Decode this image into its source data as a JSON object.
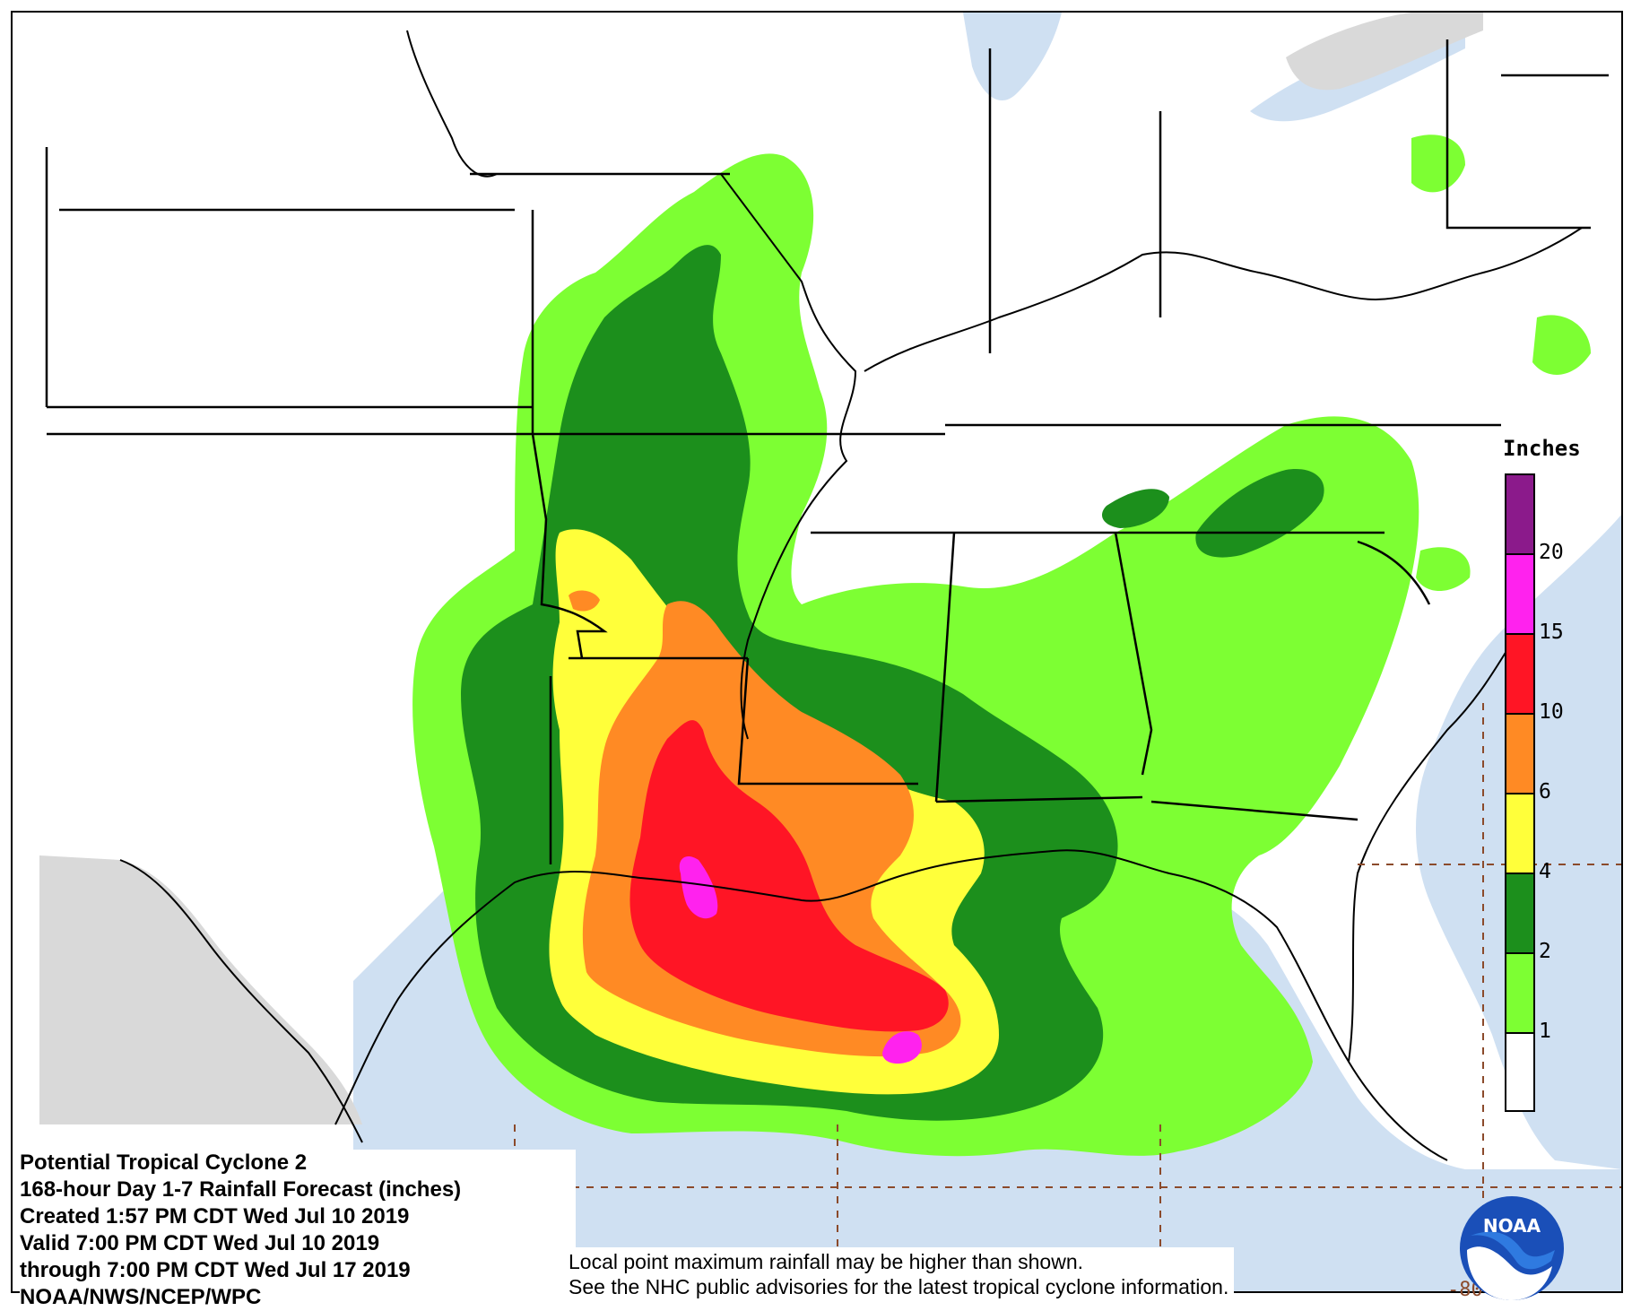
{
  "info_block": {
    "line1": "Potential Tropical Cyclone 2",
    "line2": "168-hour Day 1-7 Rainfall Forecast (inches)",
    "line3": "Created 1:57 PM CDT Wed Jul 10 2019",
    "line4": "Valid 7:00 PM CDT Wed Jul 10 2019",
    "line5": "through 7:00 PM CDT Wed Jul 17 2019",
    "line6": "NOAA/NWS/NCEP/WPC"
  },
  "disclaimer": {
    "line1": "Local point maximum rainfall may be higher than shown.",
    "line2": "See the NHC public advisories for the latest tropical cyclone information."
  },
  "legend": {
    "title": "Inches",
    "labels": [
      "20",
      "15",
      "10",
      "6",
      "4",
      "2",
      "1"
    ],
    "swatch_colors": [
      "#8b1a8b",
      "#ff22ee",
      "#ff1525",
      "#ff8a24",
      "#ffff3a",
      "#1c8f1c",
      "#7dff33",
      "#ffffff"
    ]
  },
  "longitude_label": "-80",
  "logo": {
    "text": "NOAA",
    "icon": "noaa-logo-icon"
  },
  "colors": {
    "water": "#cfe0f2",
    "outside_us": "#d9d9d9",
    "rain_1": "#7dff33",
    "rain_2": "#1c8f1c",
    "rain_4": "#ffff3a",
    "rain_6": "#ff8a24",
    "rain_10": "#ff1525",
    "rain_15": "#ff22ee",
    "grid": "#8b4a2b"
  }
}
